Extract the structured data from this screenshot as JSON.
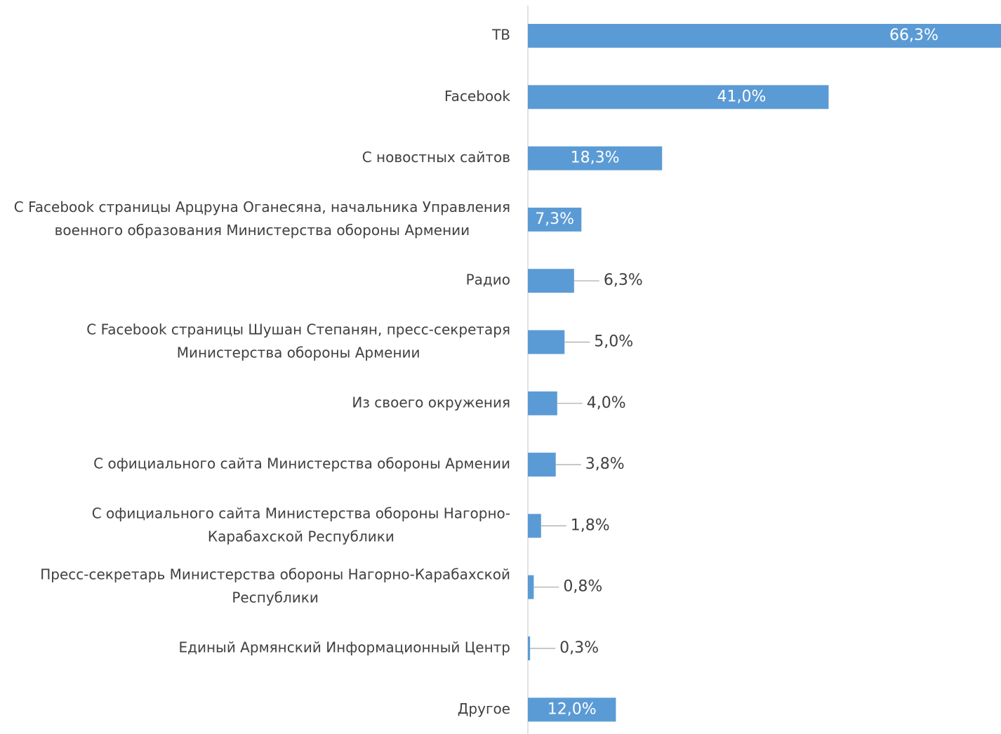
{
  "chart_data": {
    "type": "barh",
    "categories": [
      [
        "ТВ"
      ],
      [
        "Facebook"
      ],
      [
        "С новостных сайтов"
      ],
      [
        "С Facebook страницы Арцруна Оганесяна, начальника Управления",
        "военного образования Министерства обороны Армении"
      ],
      [
        "Радио"
      ],
      [
        "С Facebook страницы Шушан Степанян, пресс-секретаря",
        "Министерства обороны Армении"
      ],
      [
        "Из своего окружения"
      ],
      [
        "С официального сайта Министерства обороны Армении"
      ],
      [
        "С официального сайта Министерства обороны Нагорно-",
        "Карабахской Республики"
      ],
      [
        "Пресс-секретарь Министерства обороны Нагорно-Карабахской",
        "Республики"
      ],
      [
        "Единый Армянский Информационный Центр"
      ],
      [
        "Другое"
      ]
    ],
    "values": [
      66.3,
      41.0,
      18.3,
      7.3,
      6.3,
      5.0,
      4.0,
      3.8,
      1.8,
      0.8,
      0.3,
      12.0
    ],
    "value_labels": [
      "66,3%",
      "41,0%",
      "18,3%",
      "7,3%",
      "6,3%",
      "5,0%",
      "4,0%",
      "3,8%",
      "1,8%",
      "0,8%",
      "0,3%",
      "12,0%"
    ],
    "color": "#5b9bd5"
  }
}
